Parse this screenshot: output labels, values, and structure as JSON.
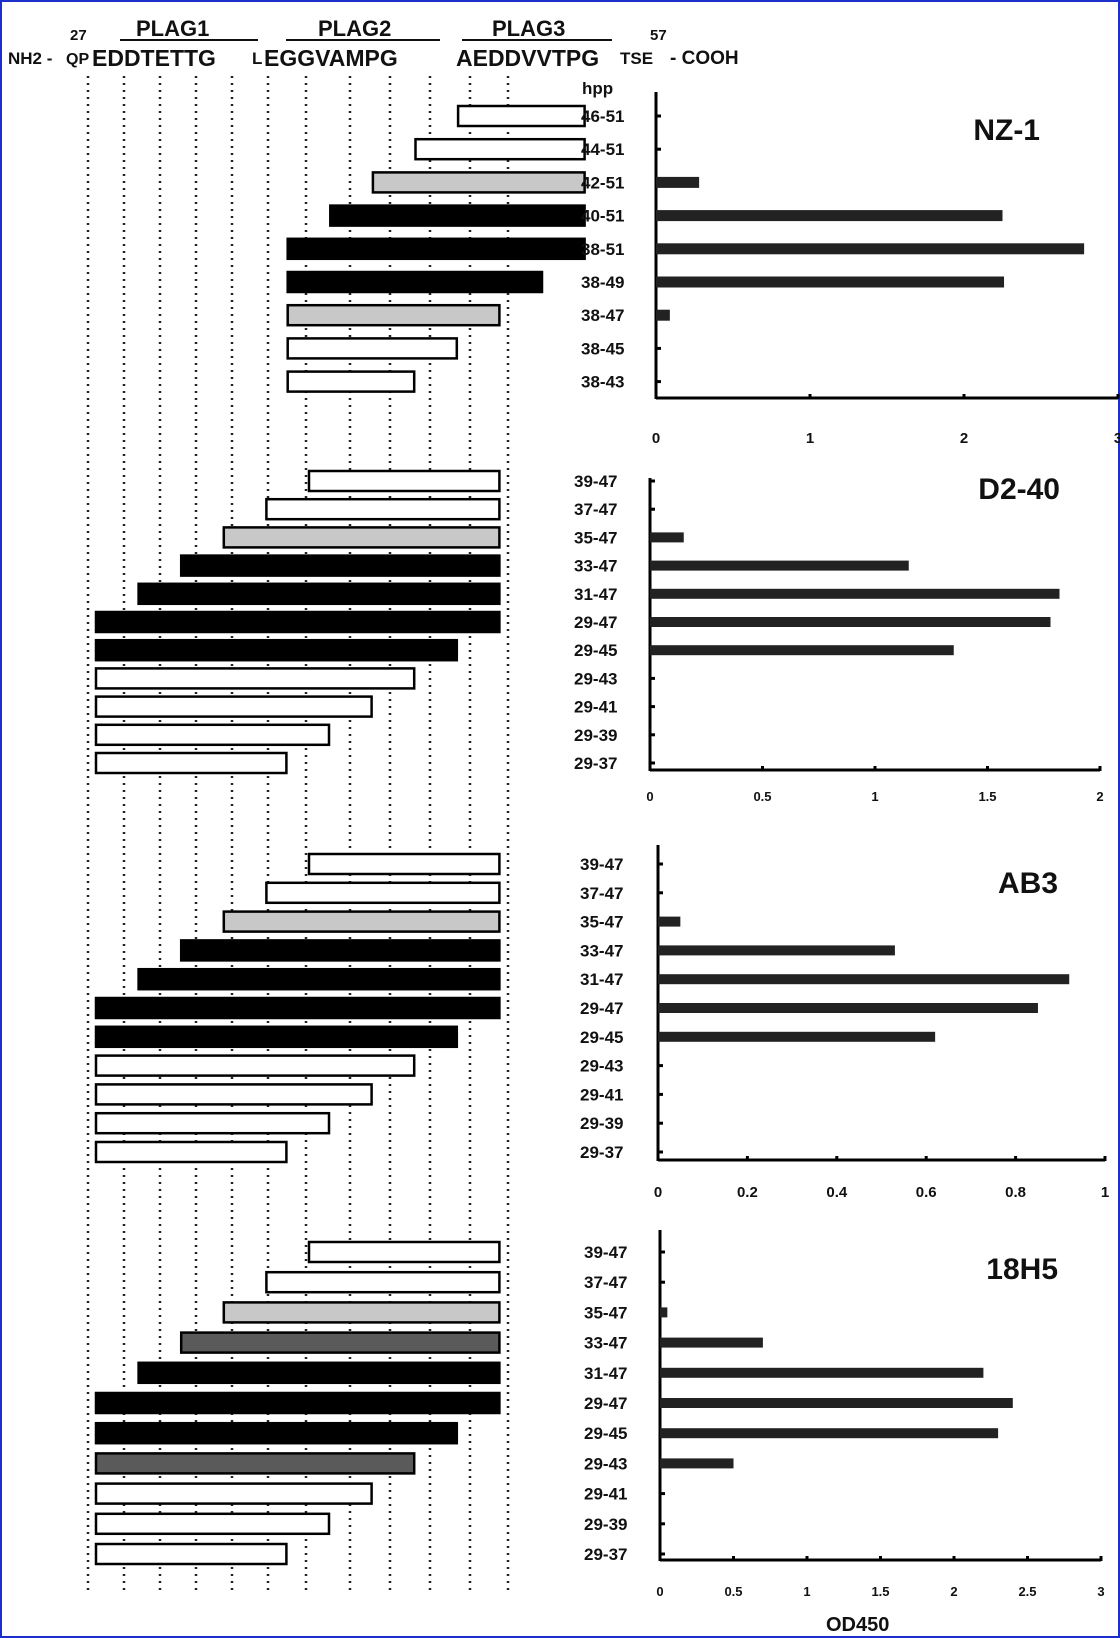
{
  "header": {
    "start_number": "27",
    "end_number": "57",
    "plag1": "PLAG1",
    "plag2": "PLAG2",
    "plag3": "PLAG3",
    "n_term": "NH2 -",
    "qp": "QP",
    "seq_plag1": "EDDTETTG",
    "seq_l": "L",
    "seq_plag2": "EGGVAMPG",
    "seq_plag3": "AEDDVVTPG",
    "seq_tse": "TSE",
    "c_term": "- COOH",
    "hpp": "hpp"
  },
  "colors": {
    "white_fill": "#ffffff",
    "light_gray_fill": "#c8c8c8",
    "dark_gray_fill": "#5a5a5a",
    "black_fill": "#000000",
    "frame": "#1a2fcc"
  },
  "footer": {
    "xlabel": "OD450"
  },
  "chart_data": [
    {
      "type": "bar",
      "orientation": "horizontal",
      "title": "NZ-1",
      "categories": [
        "46-51",
        "44-51",
        "42-51",
        "40-51",
        "38-51",
        "38-49",
        "38-47",
        "38-45",
        "38-43"
      ],
      "values": [
        0,
        0,
        0.28,
        2.25,
        2.78,
        2.26,
        0.09,
        0,
        0
      ],
      "fills": [
        "white",
        "white",
        "light_gray",
        "black",
        "black",
        "black",
        "light_gray",
        "white",
        "white"
      ],
      "peptides": [
        [
          46,
          51
        ],
        [
          44,
          51
        ],
        [
          42,
          51
        ],
        [
          40,
          51
        ],
        [
          38,
          51
        ],
        [
          38,
          49
        ],
        [
          38,
          47
        ],
        [
          38,
          45
        ],
        [
          38,
          43
        ]
      ],
      "xlim": [
        0,
        3
      ],
      "xticks": [
        "0",
        "1",
        "2",
        "3"
      ],
      "ylabel": "hpp"
    },
    {
      "type": "bar",
      "orientation": "horizontal",
      "title": "D2-40",
      "categories": [
        "39-47",
        "37-47",
        "35-47",
        "33-47",
        "31-47",
        "29-47",
        "29-45",
        "29-43",
        "29-41",
        "29-39",
        "29-37"
      ],
      "values": [
        0,
        0,
        0.15,
        1.15,
        1.82,
        1.78,
        1.35,
        0,
        0,
        0,
        0
      ],
      "fills": [
        "white",
        "white",
        "light_gray",
        "black",
        "black",
        "black",
        "black",
        "white",
        "white",
        "white",
        "white"
      ],
      "peptides": [
        [
          39,
          47
        ],
        [
          37,
          47
        ],
        [
          35,
          47
        ],
        [
          33,
          47
        ],
        [
          31,
          47
        ],
        [
          29,
          47
        ],
        [
          29,
          45
        ],
        [
          29,
          43
        ],
        [
          29,
          41
        ],
        [
          29,
          39
        ],
        [
          29,
          37
        ]
      ],
      "xlim": [
        0,
        2
      ],
      "xticks": [
        "0",
        "0.5",
        "1",
        "1.5",
        "2"
      ]
    },
    {
      "type": "bar",
      "orientation": "horizontal",
      "title": "AB3",
      "categories": [
        "39-47",
        "37-47",
        "35-47",
        "33-47",
        "31-47",
        "29-47",
        "29-45",
        "29-43",
        "29-41",
        "29-39",
        "29-37"
      ],
      "values": [
        0,
        0,
        0.05,
        0.53,
        0.92,
        0.85,
        0.62,
        0,
        0,
        0,
        0
      ],
      "fills": [
        "white",
        "white",
        "light_gray",
        "black",
        "black",
        "black",
        "black",
        "white",
        "white",
        "white",
        "white"
      ],
      "peptides": [
        [
          39,
          47
        ],
        [
          37,
          47
        ],
        [
          35,
          47
        ],
        [
          33,
          47
        ],
        [
          31,
          47
        ],
        [
          29,
          47
        ],
        [
          29,
          45
        ],
        [
          29,
          43
        ],
        [
          29,
          41
        ],
        [
          29,
          39
        ],
        [
          29,
          37
        ]
      ],
      "xlim": [
        0,
        1
      ],
      "xticks": [
        "0",
        "0.2",
        "0.4",
        "0.6",
        "0.8",
        "1"
      ]
    },
    {
      "type": "bar",
      "orientation": "horizontal",
      "title": "18H5",
      "categories": [
        "39-47",
        "37-47",
        "35-47",
        "33-47",
        "31-47",
        "29-47",
        "29-45",
        "29-43",
        "29-41",
        "29-39",
        "29-37"
      ],
      "values": [
        0,
        0,
        0.05,
        0.7,
        2.2,
        2.4,
        2.3,
        0.5,
        0,
        0,
        0
      ],
      "fills": [
        "white",
        "white",
        "light_gray",
        "dark_gray",
        "black",
        "black",
        "black",
        "dark_gray",
        "white",
        "white",
        "white"
      ],
      "peptides": [
        [
          39,
          47
        ],
        [
          37,
          47
        ],
        [
          35,
          47
        ],
        [
          33,
          47
        ],
        [
          31,
          47
        ],
        [
          29,
          47
        ],
        [
          29,
          45
        ],
        [
          29,
          43
        ],
        [
          29,
          41
        ],
        [
          29,
          39
        ],
        [
          29,
          37
        ]
      ],
      "xlim": [
        0,
        3
      ],
      "xticks": [
        "0",
        "0.5",
        "1",
        "1.5",
        "2",
        "2.5",
        "3"
      ],
      "xlabel": "OD450"
    }
  ]
}
